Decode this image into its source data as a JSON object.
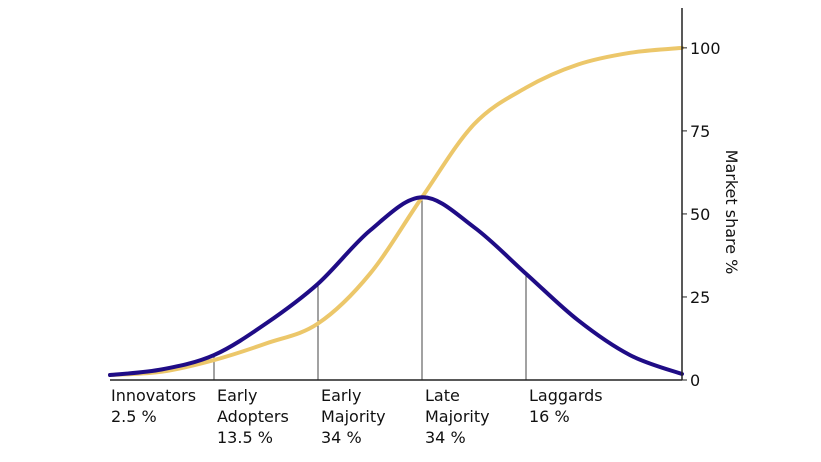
{
  "chart_data": {
    "type": "line",
    "ylabel": "Market share %",
    "ylim": [
      0,
      112
    ],
    "y_ticks": [
      "0",
      "25",
      "50",
      "75",
      "100"
    ],
    "y_tick_values": [
      0,
      25,
      50,
      75,
      100
    ],
    "x_range": [
      -3,
      2.5
    ],
    "series": [
      {
        "kind": "adoption-bell",
        "color": "#1f0c86",
        "x": [
          -3,
          -2.5,
          -2,
          -1.5,
          -1,
          -0.5,
          0,
          0.5,
          1,
          1.5,
          2,
          2.5
        ],
        "values": [
          1.5,
          3.2,
          7.5,
          17,
          29,
          45,
          55,
          46,
          32,
          18,
          7.5,
          1.8
        ]
      },
      {
        "kind": "cumulative-s-curve",
        "color": "#ecc76a",
        "x": [
          -3,
          -2.5,
          -2,
          -1.5,
          -1,
          -0.5,
          0,
          0.5,
          1,
          1.5,
          2,
          2.5
        ],
        "values": [
          1.5,
          2.5,
          6,
          11,
          17,
          32,
          55,
          77,
          88,
          95,
          98.5,
          100
        ]
      }
    ],
    "segments": [
      {
        "line1": "Innovators",
        "line2": "2.5 %",
        "line3": ""
      },
      {
        "line1": "Early",
        "line2": "Adopters",
        "line3": "13.5 %"
      },
      {
        "line1": "Early",
        "line2": "Majority",
        "line3": "34 %"
      },
      {
        "line1": "Late",
        "line2": "Majority",
        "line3": "34 %"
      },
      {
        "line1": "Laggards",
        "line2": "16 %",
        "line3": ""
      }
    ],
    "boundaries": [
      -2,
      -1,
      0,
      1
    ],
    "colors": {
      "axis": "#222222",
      "divider": "#444444"
    }
  }
}
